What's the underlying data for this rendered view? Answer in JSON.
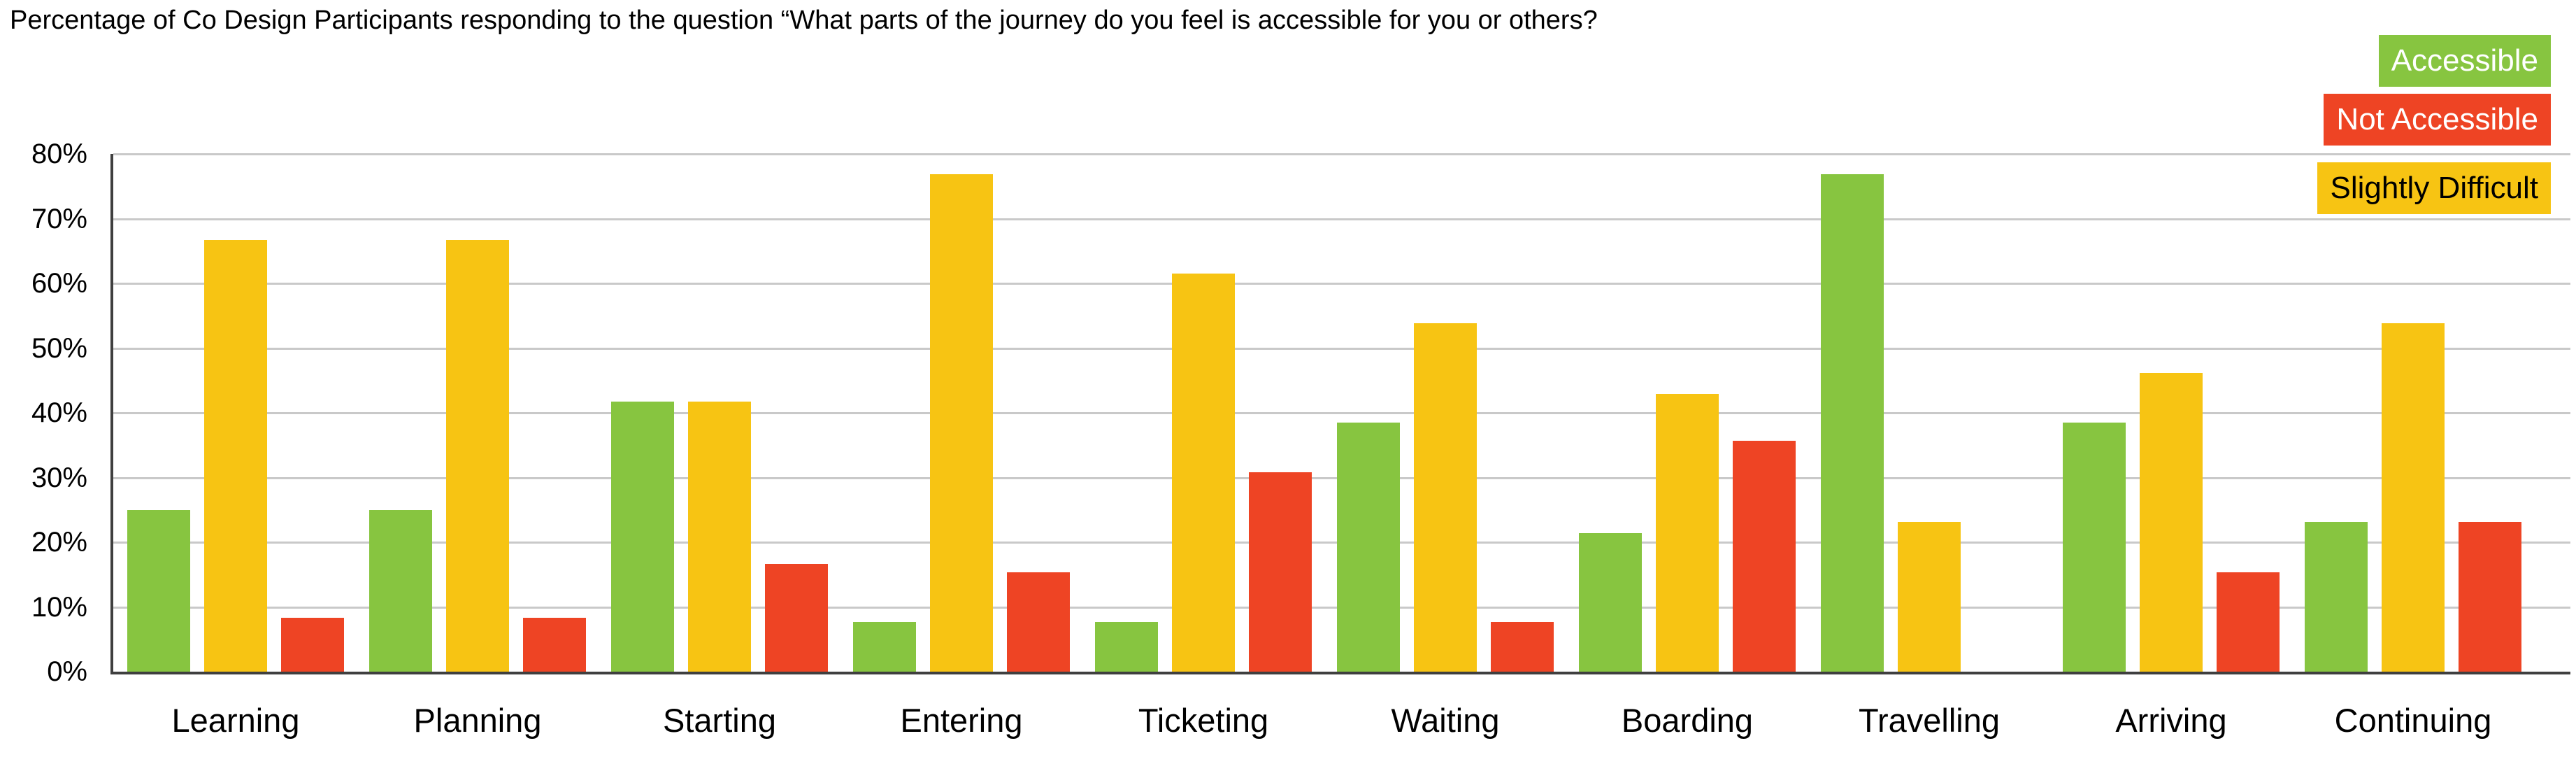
{
  "chart_data": {
    "type": "bar",
    "title": "Percentage of Co Design Participants responding to the question “What parts of the journey do you feel is accessible for you or others?",
    "categories": [
      "Learning",
      "Planning",
      "Starting",
      "Entering",
      "Ticketing",
      "Waiting",
      "Boarding",
      "Travelling",
      "Arriving",
      "Continuing"
    ],
    "series": [
      {
        "name": "Accessible",
        "color": "#87C540",
        "values": [
          25.0,
          25.0,
          41.7,
          7.7,
          7.7,
          38.5,
          21.4,
          76.9,
          38.5,
          23.1
        ]
      },
      {
        "name": "Slightly Difficult",
        "color": "#F7C413",
        "values": [
          66.7,
          66.7,
          41.7,
          76.9,
          61.5,
          53.8,
          42.9,
          23.1,
          46.2,
          53.8
        ]
      },
      {
        "name": "Not Accessible",
        "color": "#EE4424",
        "values": [
          8.3,
          8.3,
          16.7,
          15.4,
          30.8,
          7.7,
          35.7,
          0,
          15.4,
          23.1
        ]
      }
    ],
    "legend": [
      {
        "label": "Accessible",
        "bg": "#87C540",
        "text": "#FFFFFF"
      },
      {
        "label": "Not Accessible",
        "bg": "#EE4424",
        "text": "#FFFFFF"
      },
      {
        "label": "Slightly Difficult",
        "bg": "#F7C413",
        "text": "#000000"
      }
    ],
    "legend_position": "top-right",
    "grid": true,
    "y_axis": {
      "min": 0,
      "max": 80,
      "step": 10,
      "tick_labels": [
        "80%",
        "70%",
        "60%",
        "50%",
        "40%",
        "30%",
        "20%",
        "10%",
        "0%"
      ]
    },
    "colors": {
      "gridline": "#C9C9C9",
      "axis": "#3F3F3F",
      "background": "#FFFFFF"
    }
  }
}
